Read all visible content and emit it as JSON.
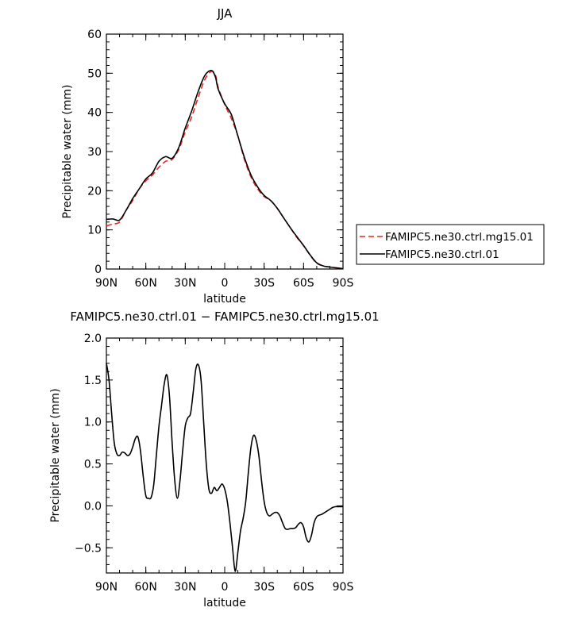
{
  "chart_data": [
    {
      "type": "line",
      "title": "JJA",
      "xlabel": "latitude",
      "ylabel": "Precipitable water (mm)",
      "xlim": [
        90,
        -90
      ],
      "ylim": [
        0,
        60
      ],
      "x_ticks": [
        90,
        60,
        30,
        0,
        -30,
        -60,
        -90
      ],
      "x_tick_labels": [
        "90N",
        "60N",
        "30N",
        "0",
        "30S",
        "60S",
        "90S"
      ],
      "y_ticks": [
        0,
        10,
        20,
        30,
        40,
        50,
        60
      ],
      "y_tick_labels": [
        "0",
        "10",
        "20",
        "30",
        "40",
        "50",
        "60"
      ],
      "legend_position": "right",
      "series": [
        {
          "name": "FAMIPC5.ne30.ctrl.mg15.01",
          "color": "#e8281f",
          "dash": "dashed",
          "x": [
            90,
            85,
            80,
            75,
            70,
            65,
            60,
            55,
            50,
            45,
            40,
            35,
            30,
            25,
            20,
            15,
            10,
            7,
            5,
            0,
            -5,
            -10,
            -15,
            -20,
            -25,
            -30,
            -35,
            -40,
            -45,
            -50,
            -55,
            -60,
            -65,
            -70,
            -75,
            -80,
            -85,
            -90
          ],
          "y": [
            11,
            11.5,
            12,
            15,
            17.5,
            20.5,
            22.5,
            24,
            26,
            27.5,
            28,
            30.5,
            35,
            39,
            44,
            48.5,
            50.5,
            49.5,
            46.5,
            42,
            38.5,
            34,
            28,
            23.5,
            20.5,
            18.5,
            17.5,
            15.5,
            13,
            10.5,
            8,
            6,
            3.5,
            1.5,
            0.8,
            0.5,
            0.3,
            0.1
          ]
        },
        {
          "name": "FAMIPC5.ne30.ctrl.01",
          "color": "#000000",
          "dash": "solid",
          "x": [
            90,
            85,
            80,
            75,
            70,
            65,
            60,
            55,
            50,
            45,
            40,
            35,
            30,
            25,
            20,
            15,
            10,
            7,
            5,
            0,
            -5,
            -10,
            -15,
            -20,
            -25,
            -30,
            -35,
            -40,
            -45,
            -50,
            -55,
            -60,
            -65,
            -70,
            -75,
            -80,
            -85,
            -90
          ],
          "y": [
            12.7,
            12.8,
            12.5,
            15,
            18,
            20.5,
            23,
            24.5,
            27.5,
            28.7,
            28.3,
            31,
            36,
            40.5,
            45.5,
            49.5,
            50.7,
            49,
            46,
            42.2,
            39.5,
            34,
            28.5,
            24,
            21,
            18.8,
            17.5,
            15.5,
            13,
            10.5,
            8.2,
            6,
            3.6,
            1.6,
            0.8,
            0.5,
            0.3,
            0.1
          ]
        }
      ]
    },
    {
      "type": "line",
      "title": "FAMIPC5.ne30.ctrl.01 − FAMIPC5.ne30.ctrl.mg15.01",
      "xlabel": "latitude",
      "ylabel": "Precipitable water (mm)",
      "xlim": [
        90,
        -90
      ],
      "ylim": [
        -0.8,
        2.0
      ],
      "x_ticks": [
        90,
        60,
        30,
        0,
        -30,
        -60,
        -90
      ],
      "x_tick_labels": [
        "90N",
        "60N",
        "30N",
        "0",
        "30S",
        "60S",
        "90S"
      ],
      "y_ticks": [
        -0.5,
        0,
        0.5,
        1.0,
        1.5,
        2.0
      ],
      "y_tick_labels": [
        "−0.5",
        "0.0",
        "0.5",
        "1.0",
        "1.5",
        "2.0"
      ],
      "series": [
        {
          "color": "#000000",
          "dash": "solid",
          "x": [
            90,
            88,
            86,
            84,
            82,
            80,
            78,
            76,
            74,
            72,
            70,
            68,
            66,
            64,
            62,
            60,
            58,
            56,
            54,
            52,
            50,
            48,
            46,
            44,
            42,
            40,
            38,
            36,
            34,
            32,
            30,
            28,
            26,
            24,
            22,
            20,
            18,
            16,
            14,
            12,
            10,
            8,
            6,
            4,
            2,
            0,
            -2,
            -4,
            -6,
            -8,
            -10,
            -12,
            -14,
            -16,
            -18,
            -20,
            -22,
            -24,
            -26,
            -28,
            -30,
            -32,
            -34,
            -36,
            -38,
            -40,
            -42,
            -44,
            -46,
            -48,
            -50,
            -52,
            -54,
            -56,
            -58,
            -60,
            -62,
            -64,
            -66,
            -68,
            -70,
            -72,
            -74,
            -76,
            -78,
            -80,
            -82,
            -84,
            -86,
            -88,
            -90
          ],
          "y": [
            1.7,
            1.5,
            1.1,
            0.75,
            0.62,
            0.6,
            0.64,
            0.63,
            0.6,
            0.62,
            0.7,
            0.8,
            0.82,
            0.65,
            0.35,
            0.12,
            0.09,
            0.1,
            0.25,
            0.6,
            0.95,
            1.2,
            1.45,
            1.56,
            1.3,
            0.75,
            0.3,
            0.09,
            0.3,
            0.65,
            0.95,
            1.05,
            1.1,
            1.35,
            1.63,
            1.68,
            1.5,
            1.0,
            0.5,
            0.2,
            0.15,
            0.22,
            0.18,
            0.22,
            0.26,
            0.2,
            0.05,
            -0.2,
            -0.5,
            -0.78,
            -0.55,
            -0.3,
            -0.15,
            0.05,
            0.4,
            0.7,
            0.84,
            0.78,
            0.6,
            0.3,
            0.05,
            -0.08,
            -0.12,
            -0.1,
            -0.08,
            -0.08,
            -0.12,
            -0.2,
            -0.27,
            -0.28,
            -0.27,
            -0.27,
            -0.26,
            -0.22,
            -0.2,
            -0.25,
            -0.38,
            -0.43,
            -0.35,
            -0.2,
            -0.13,
            -0.11,
            -0.1,
            -0.08,
            -0.06,
            -0.04,
            -0.02,
            -0.01,
            -0.01,
            -0.01,
            -0.01
          ]
        }
      ]
    }
  ]
}
